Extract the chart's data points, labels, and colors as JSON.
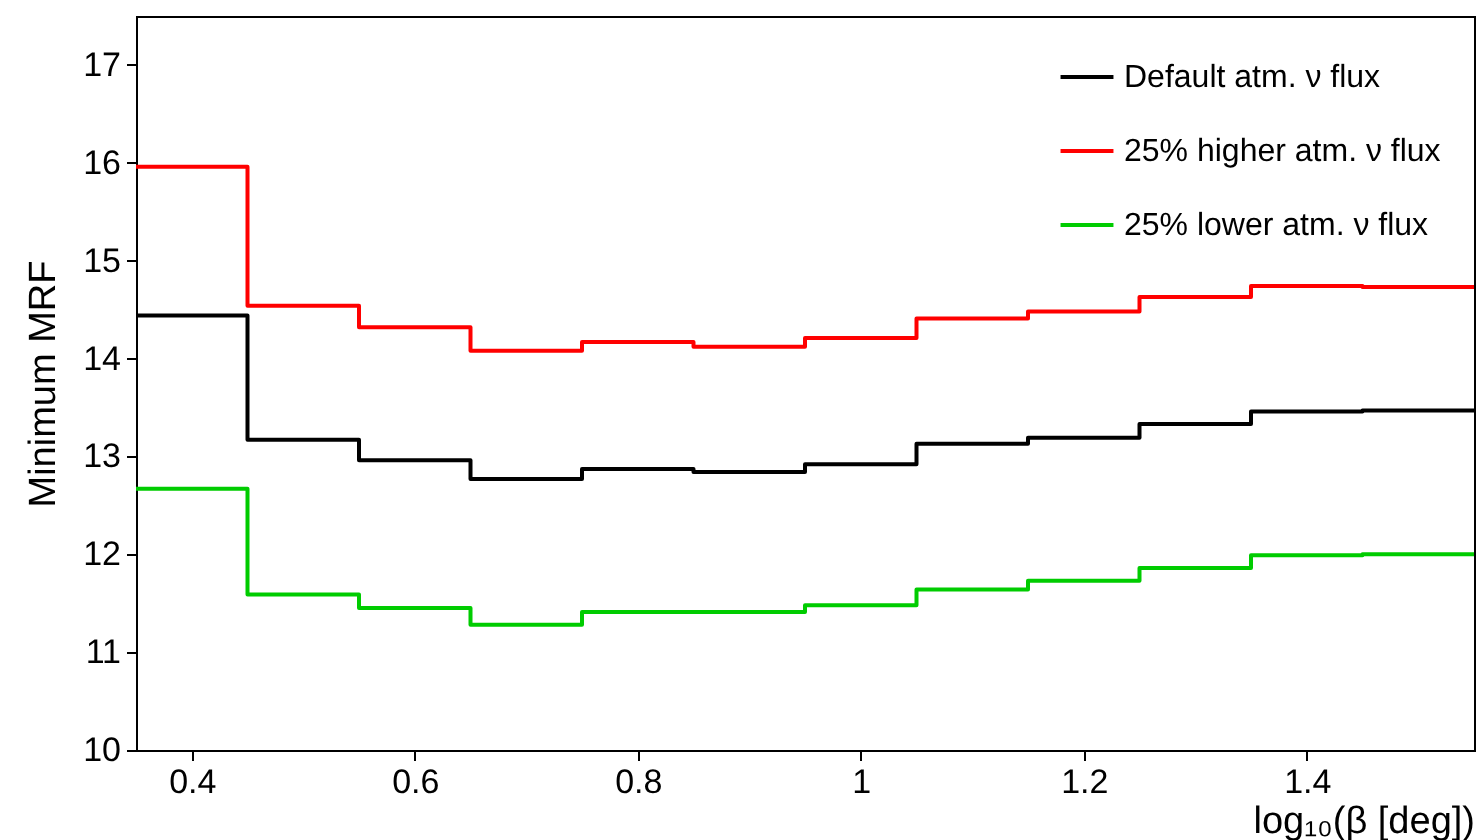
{
  "chart_data": {
    "type": "step",
    "xlabel": "log₁₀(β [deg])",
    "ylabel": "Minimum MRF",
    "x": [
      0.35,
      0.45,
      0.55,
      0.65,
      0.75,
      0.85,
      0.95,
      1.05,
      1.15,
      1.25,
      1.35,
      1.45,
      1.55
    ],
    "series": [
      {
        "name": "Default atm. ν flux",
        "color": "#000000",
        "values": [
          14.44,
          13.17,
          12.96,
          12.77,
          12.87,
          12.84,
          12.92,
          13.13,
          13.19,
          13.33,
          13.46,
          13.47,
          13.47
        ]
      },
      {
        "name": "25% higher atm. ν flux",
        "color": "#ff0000",
        "values": [
          15.96,
          14.54,
          14.32,
          14.08,
          14.17,
          14.12,
          14.21,
          14.41,
          14.48,
          14.63,
          14.74,
          14.73,
          14.73
        ]
      },
      {
        "name": "25% lower atm. ν flux",
        "color": "#00cc00",
        "values": [
          12.67,
          11.59,
          11.45,
          11.28,
          11.41,
          11.41,
          11.48,
          11.64,
          11.73,
          11.86,
          11.99,
          12.0,
          12.0
        ]
      }
    ],
    "xlim": [
      0.35,
      1.55
    ],
    "xticks": [
      0.4,
      0.6,
      0.8,
      {
        "value": 1,
        "label": "1"
      },
      1.2,
      1.4
    ],
    "ylim": [
      10,
      17.5
    ],
    "yticks": [
      10,
      11,
      12,
      13,
      14,
      15,
      16,
      17
    ],
    "grid": false,
    "legend": "top right"
  }
}
